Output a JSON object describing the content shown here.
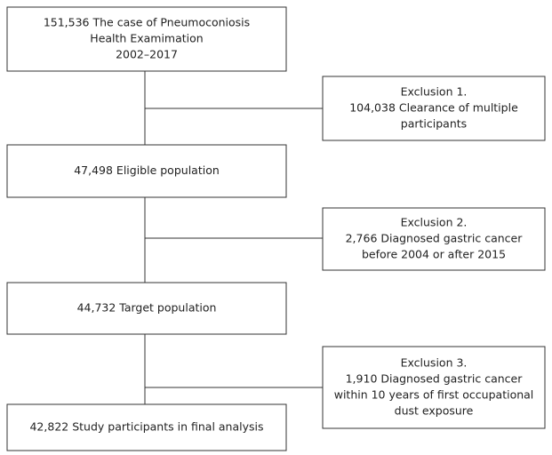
{
  "nodes": [
    {
      "lines": [
        "151,536 The case of Pneumoconiosis",
        "Health Examimation",
        "2002–2017"
      ]
    },
    {
      "lines": [
        "47,498 Eligible population"
      ]
    },
    {
      "lines": [
        "44,732 Target population"
      ]
    },
    {
      "lines": [
        "42,822 Study participants in final analysis"
      ]
    }
  ],
  "exclusions": [
    {
      "lines": [
        "Exclusion 1.",
        "104,038 Clearance of multiple",
        "participants"
      ]
    },
    {
      "lines": [
        "Exclusion 2.",
        "2,766 Diagnosed gastric cancer",
        "before 2004 or after 2015"
      ]
    },
    {
      "lines": [
        "Exclusion 3.",
        "1,910 Diagnosed gastric cancer",
        "within 10 years of first occupational",
        "dust exposure"
      ]
    }
  ]
}
